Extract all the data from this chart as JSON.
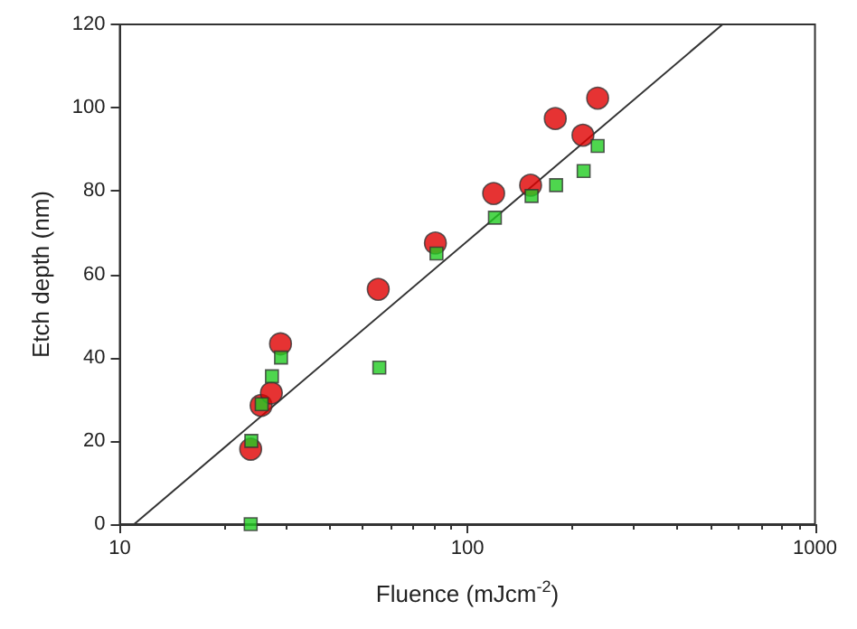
{
  "chart_data": {
    "type": "scatter",
    "xlabel": "Fluence (mJcm$^{-2}$)",
    "ylabel": "Etch depth (nm)",
    "log": "x",
    "xlim": [
      10,
      1000
    ],
    "xticks": [
      10,
      100,
      1000
    ],
    "ylim": [
      0,
      120
    ],
    "yticks": [
      0,
      20,
      40,
      60,
      80,
      100,
      120
    ],
    "grid": false,
    "series": [
      {
        "color": "#e00000",
        "marker": "circle",
        "x": [
          23.8,
          25.5,
          27.3,
          29.0,
          55.4,
          80.9,
          119,
          152,
          179,
          215,
          237
        ],
        "values": [
          18,
          28.5,
          31.5,
          43.3,
          56.4,
          67.5,
          79.4,
          81.4,
          97.4,
          93.4,
          102.3
        ]
      },
      {
        "color": "#22cc22",
        "marker": "square",
        "x": [
          23.8,
          23.9,
          25.6,
          27.4,
          29.1,
          55.8,
          81.5,
          120,
          153,
          180,
          216,
          237
        ],
        "values": [
          0,
          20,
          28.8,
          35.5,
          40,
          37.6,
          65,
          73.6,
          78.8,
          81.4,
          84.8,
          90.8
        ]
      },
      {
        "type": "line",
        "color": "#333333",
        "marker": "none",
        "x": [
          11,
          542
        ],
        "values": [
          0,
          120
        ]
      }
    ]
  }
}
